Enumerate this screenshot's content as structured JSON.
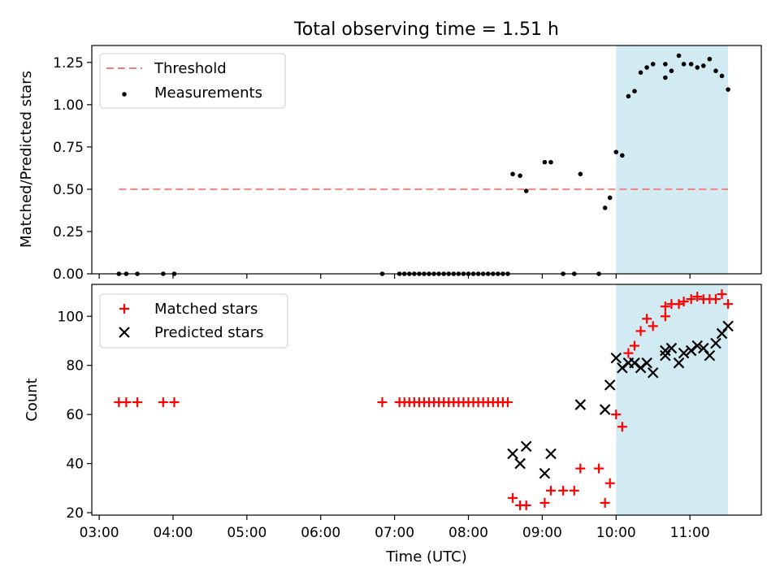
{
  "chart_data": [
    {
      "type": "scatter",
      "title": "Total observing time = 1.51 h",
      "ylabel": "Matched/Predicted stars",
      "xlabel": "",
      "ylim": [
        0,
        1.35
      ],
      "xlim": [
        "02:54",
        "11:58"
      ],
      "yticks": [
        "0.00",
        "0.25",
        "0.50",
        "0.75",
        "1.00",
        "1.25"
      ],
      "shaded_region": [
        "10:00",
        "11:31"
      ],
      "shaded_color": "#add8e6",
      "legend_position": "top-left",
      "threshold": {
        "name": "Threshold",
        "value": 0.5,
        "x_start": "03:16",
        "x_end": "11:31",
        "color": "#f08080"
      },
      "series": [
        {
          "name": "Measurements",
          "color": "#000000",
          "marker": "dot",
          "points": [
            [
              "03:16",
              0
            ],
            [
              "03:22",
              0
            ],
            [
              "03:31",
              0
            ],
            [
              "03:52",
              0
            ],
            [
              "04:01",
              0
            ],
            [
              "06:50",
              0
            ],
            [
              "07:04",
              0
            ],
            [
              "07:08",
              0
            ],
            [
              "07:12",
              0
            ],
            [
              "07:16",
              0
            ],
            [
              "07:20",
              0
            ],
            [
              "07:24",
              0
            ],
            [
              "07:28",
              0
            ],
            [
              "07:32",
              0
            ],
            [
              "07:36",
              0
            ],
            [
              "07:40",
              0
            ],
            [
              "07:44",
              0
            ],
            [
              "07:48",
              0
            ],
            [
              "07:52",
              0
            ],
            [
              "07:56",
              0
            ],
            [
              "08:00",
              0
            ],
            [
              "08:04",
              0
            ],
            [
              "08:08",
              0
            ],
            [
              "08:12",
              0
            ],
            [
              "08:16",
              0
            ],
            [
              "08:20",
              0
            ],
            [
              "08:24",
              0
            ],
            [
              "08:28",
              0
            ],
            [
              "08:32",
              0
            ],
            [
              "08:36",
              0.59
            ],
            [
              "08:42",
              0.58
            ],
            [
              "08:47",
              0.49
            ],
            [
              "09:02",
              0.66
            ],
            [
              "09:07",
              0.66
            ],
            [
              "09:17",
              0
            ],
            [
              "09:26",
              0
            ],
            [
              "09:31",
              0.59
            ],
            [
              "09:46",
              0
            ],
            [
              "09:51",
              0.39
            ],
            [
              "09:55",
              0.45
            ],
            [
              "10:00",
              0.72
            ],
            [
              "10:05",
              0.7
            ],
            [
              "10:10",
              1.05
            ],
            [
              "10:15",
              1.08
            ],
            [
              "10:20",
              1.19
            ],
            [
              "10:25",
              1.22
            ],
            [
              "10:30",
              1.24
            ],
            [
              "10:40",
              1.16
            ],
            [
              "10:40",
              1.24
            ],
            [
              "10:45",
              1.2
            ],
            [
              "10:51",
              1.29
            ],
            [
              "10:55",
              1.24
            ],
            [
              "11:01",
              1.24
            ],
            [
              "11:06",
              1.22
            ],
            [
              "11:11",
              1.23
            ],
            [
              "11:16",
              1.27
            ],
            [
              "11:21",
              1.2
            ],
            [
              "11:26",
              1.17
            ],
            [
              "11:31",
              1.09
            ]
          ]
        }
      ]
    },
    {
      "type": "scatter",
      "title": "",
      "ylabel": "Count",
      "xlabel": "Time (UTC)",
      "ylim": [
        19,
        113
      ],
      "xlim": [
        "02:54",
        "11:58"
      ],
      "xticks": [
        "03:00",
        "04:00",
        "05:00",
        "06:00",
        "07:00",
        "08:00",
        "09:00",
        "10:00",
        "11:00"
      ],
      "yticks": [
        "20",
        "40",
        "60",
        "80",
        "100"
      ],
      "shaded_region": [
        "10:00",
        "11:31"
      ],
      "shaded_color": "#add8e6",
      "legend_position": "top-left",
      "series": [
        {
          "name": "Matched stars",
          "color": "#ff0000",
          "marker": "plus",
          "points": [
            [
              "03:16",
              65
            ],
            [
              "03:22",
              65
            ],
            [
              "03:31",
              65
            ],
            [
              "03:52",
              65
            ],
            [
              "04:01",
              65
            ],
            [
              "06:50",
              65
            ],
            [
              "07:04",
              65
            ],
            [
              "07:08",
              65
            ],
            [
              "07:12",
              65
            ],
            [
              "07:16",
              65
            ],
            [
              "07:20",
              65
            ],
            [
              "07:24",
              65
            ],
            [
              "07:28",
              65
            ],
            [
              "07:32",
              65
            ],
            [
              "07:36",
              65
            ],
            [
              "07:40",
              65
            ],
            [
              "07:44",
              65
            ],
            [
              "07:48",
              65
            ],
            [
              "07:52",
              65
            ],
            [
              "07:56",
              65
            ],
            [
              "08:00",
              65
            ],
            [
              "08:04",
              65
            ],
            [
              "08:08",
              65
            ],
            [
              "08:12",
              65
            ],
            [
              "08:16",
              65
            ],
            [
              "08:20",
              65
            ],
            [
              "08:24",
              65
            ],
            [
              "08:28",
              65
            ],
            [
              "08:32",
              65
            ],
            [
              "08:36",
              26
            ],
            [
              "08:42",
              23
            ],
            [
              "08:47",
              23
            ],
            [
              "09:02",
              24
            ],
            [
              "09:07",
              29
            ],
            [
              "09:17",
              29
            ],
            [
              "09:26",
              29
            ],
            [
              "09:31",
              38
            ],
            [
              "09:46",
              38
            ],
            [
              "09:51",
              24
            ],
            [
              "09:55",
              32
            ],
            [
              "10:00",
              60
            ],
            [
              "10:05",
              55
            ],
            [
              "10:10",
              85
            ],
            [
              "10:15",
              88
            ],
            [
              "10:20",
              94
            ],
            [
              "10:25",
              99
            ],
            [
              "10:30",
              96
            ],
            [
              "10:40",
              100
            ],
            [
              "10:40",
              104
            ],
            [
              "10:45",
              105
            ],
            [
              "10:51",
              105
            ],
            [
              "10:55",
              106
            ],
            [
              "11:01",
              107
            ],
            [
              "11:06",
              108
            ],
            [
              "11:11",
              107
            ],
            [
              "11:16",
              107
            ],
            [
              "11:21",
              107
            ],
            [
              "11:26",
              109
            ],
            [
              "11:31",
              105
            ]
          ]
        },
        {
          "name": "Predicted stars",
          "color": "#000000",
          "marker": "x",
          "points": [
            [
              "08:36",
              44
            ],
            [
              "08:42",
              40
            ],
            [
              "08:47",
              47
            ],
            [
              "09:02",
              36
            ],
            [
              "09:07",
              44
            ],
            [
              "09:31",
              64
            ],
            [
              "09:51",
              62
            ],
            [
              "09:55",
              72
            ],
            [
              "10:00",
              83
            ],
            [
              "10:05",
              79
            ],
            [
              "10:10",
              81
            ],
            [
              "10:15",
              81
            ],
            [
              "10:20",
              79
            ],
            [
              "10:25",
              81
            ],
            [
              "10:30",
              77
            ],
            [
              "10:40",
              86
            ],
            [
              "10:40",
              84
            ],
            [
              "10:45",
              87
            ],
            [
              "10:51",
              81
            ],
            [
              "10:55",
              85
            ],
            [
              "11:01",
              86
            ],
            [
              "11:06",
              88
            ],
            [
              "11:11",
              87
            ],
            [
              "11:16",
              84
            ],
            [
              "11:21",
              89
            ],
            [
              "11:26",
              93
            ],
            [
              "11:31",
              96
            ]
          ]
        }
      ]
    }
  ]
}
